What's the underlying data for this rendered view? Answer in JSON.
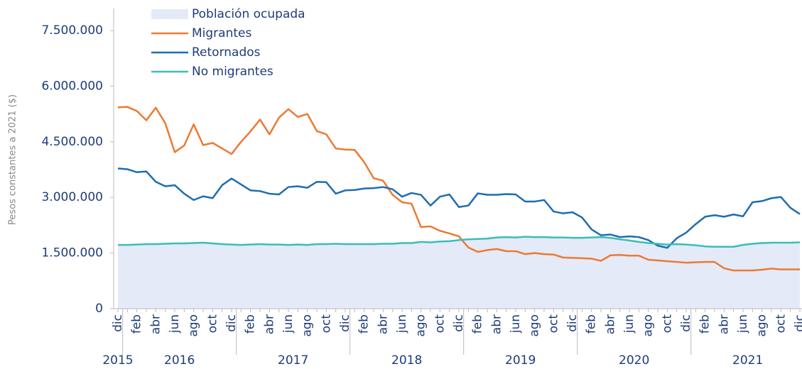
{
  "chart_data": {
    "type": "line",
    "y_label": "Pesos constantes a 2021 ($)",
    "categories": [
      "dic",
      null,
      "feb",
      null,
      "abr",
      null,
      "jun",
      null,
      "ago",
      null,
      "oct",
      null,
      "dic",
      null,
      "feb",
      null,
      "abr",
      null,
      "jun",
      null,
      "ago",
      null,
      "oct",
      null,
      "dic",
      null,
      "feb",
      null,
      "abr",
      null,
      "jun",
      null,
      "ago",
      null,
      "oct",
      null,
      "dic",
      null,
      "feb",
      null,
      "abr",
      null,
      "jun",
      null,
      "ago",
      null,
      "oct",
      null,
      "dic",
      null,
      "feb",
      null,
      "abr",
      null,
      "jun",
      null,
      "ago",
      null,
      "oct",
      null,
      "dic",
      null,
      "feb",
      null,
      "abr",
      null,
      "jun",
      null,
      "ago",
      null,
      "oct",
      null,
      "dic"
    ],
    "years": [
      "2015",
      "2016",
      "2017",
      "2018",
      "2019",
      "2020",
      "2021"
    ],
    "ylim": [
      0,
      8100000
    ],
    "yticks": [
      0,
      {
        "value": 1500000,
        "label": "1.500.000"
      },
      {
        "value": 3000000,
        "label": "3.000.000"
      },
      {
        "value": 4500000,
        "label": "4.500.000"
      },
      {
        "value": 6000000,
        "label": "6.000.000"
      },
      {
        "value": 7500000,
        "label": "7.500.000"
      }
    ],
    "series": [
      {
        "name": "Población ocupada",
        "kind": "area",
        "color": "#e4eaf7",
        "values": [
          1720000,
          1720000,
          1730000,
          1740000,
          1740000,
          1750000,
          1760000,
          1760000,
          1770000,
          1780000,
          1760000,
          1740000,
          1730000,
          1720000,
          1730000,
          1740000,
          1730000,
          1730000,
          1720000,
          1730000,
          1720000,
          1740000,
          1740000,
          1750000,
          1740000,
          1740000,
          1740000,
          1740000,
          1750000,
          1750000,
          1770000,
          1770000,
          1800000,
          1790000,
          1810000,
          1820000,
          1850000,
          1870000,
          1880000,
          1890000,
          1920000,
          1930000,
          1920000,
          1940000,
          1930000,
          1930000,
          1920000,
          1920000,
          1910000,
          1910000,
          1920000,
          1930000,
          1910000,
          1870000,
          1840000,
          1800000,
          1770000,
          1750000,
          1730000,
          1740000,
          1730000,
          1710000,
          1680000,
          1670000,
          1670000,
          1670000,
          1720000,
          1750000,
          1770000,
          1780000,
          1780000,
          1780000,
          1790000
        ]
      },
      {
        "name": "Migrantes",
        "color": "#ec7a33",
        "values": [
          5430000,
          5440000,
          5330000,
          5080000,
          5420000,
          5000000,
          4220000,
          4400000,
          4970000,
          4410000,
          4470000,
          4320000,
          4170000,
          4500000,
          4780000,
          5100000,
          4700000,
          5150000,
          5380000,
          5170000,
          5250000,
          4790000,
          4700000,
          4320000,
          4290000,
          4280000,
          3950000,
          3520000,
          3450000,
          3070000,
          2870000,
          2830000,
          2200000,
          2220000,
          2100000,
          2030000,
          1950000,
          1650000,
          1530000,
          1580000,
          1610000,
          1550000,
          1550000,
          1470000,
          1500000,
          1470000,
          1460000,
          1380000,
          1370000,
          1360000,
          1350000,
          1290000,
          1440000,
          1450000,
          1430000,
          1430000,
          1320000,
          1300000,
          1280000,
          1260000,
          1240000,
          1250000,
          1260000,
          1260000,
          1090000,
          1030000,
          1030000,
          1030000,
          1050000,
          1080000,
          1060000,
          1060000,
          1060000
        ]
      },
      {
        "name": "Retornados",
        "color": "#1f6db0",
        "values": [
          3780000,
          3760000,
          3680000,
          3700000,
          3420000,
          3300000,
          3330000,
          3100000,
          2930000,
          3030000,
          2980000,
          3330000,
          3510000,
          3350000,
          3190000,
          3170000,
          3100000,
          3080000,
          3280000,
          3300000,
          3260000,
          3420000,
          3410000,
          3100000,
          3190000,
          3200000,
          3240000,
          3250000,
          3280000,
          3220000,
          3020000,
          3120000,
          3070000,
          2780000,
          3020000,
          3080000,
          2740000,
          2780000,
          3110000,
          3070000,
          3070000,
          3090000,
          3080000,
          2890000,
          2890000,
          2930000,
          2620000,
          2570000,
          2600000,
          2460000,
          2140000,
          1980000,
          2000000,
          1930000,
          1950000,
          1930000,
          1850000,
          1700000,
          1640000,
          1900000,
          2050000,
          2280000,
          2480000,
          2520000,
          2480000,
          2540000,
          2490000,
          2870000,
          2900000,
          2980000,
          3010000,
          2720000,
          2550000
        ]
      },
      {
        "name": "No migrantes",
        "color": "#3cbdb6",
        "values": [
          1720000,
          1720000,
          1730000,
          1740000,
          1740000,
          1750000,
          1760000,
          1760000,
          1770000,
          1780000,
          1760000,
          1740000,
          1730000,
          1720000,
          1730000,
          1740000,
          1730000,
          1730000,
          1720000,
          1730000,
          1720000,
          1740000,
          1740000,
          1750000,
          1740000,
          1740000,
          1740000,
          1740000,
          1750000,
          1750000,
          1770000,
          1770000,
          1800000,
          1790000,
          1810000,
          1820000,
          1850000,
          1870000,
          1880000,
          1890000,
          1920000,
          1930000,
          1920000,
          1940000,
          1930000,
          1930000,
          1920000,
          1920000,
          1910000,
          1910000,
          1920000,
          1930000,
          1910000,
          1870000,
          1840000,
          1800000,
          1770000,
          1750000,
          1730000,
          1740000,
          1730000,
          1710000,
          1680000,
          1670000,
          1670000,
          1670000,
          1720000,
          1750000,
          1770000,
          1780000,
          1780000,
          1780000,
          1790000
        ]
      }
    ]
  }
}
